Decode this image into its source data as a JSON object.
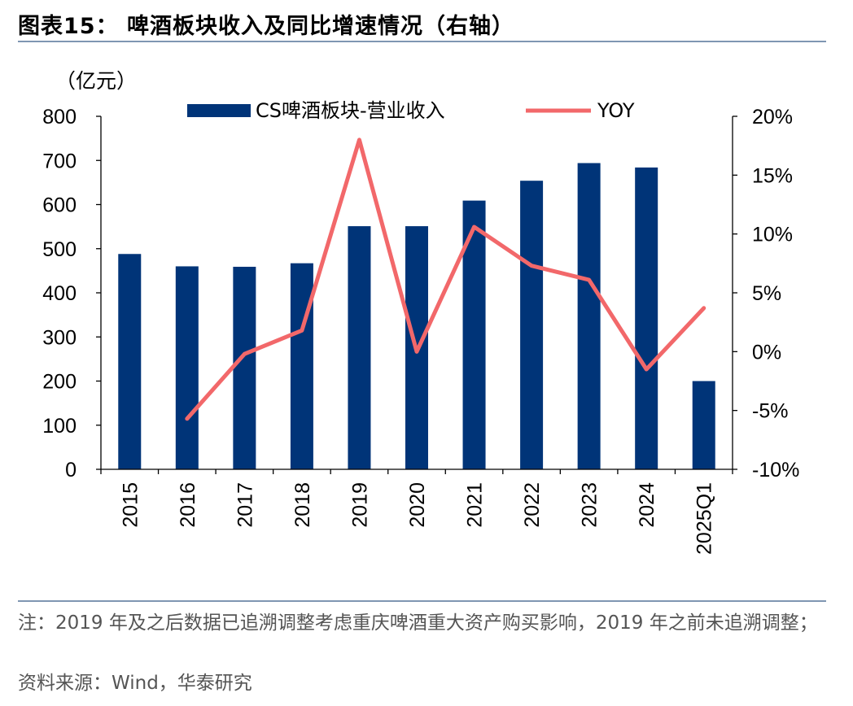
{
  "figure": {
    "title": "图表15：  啤酒板块收入及同比增速情况（右轴）",
    "note": "注：2019 年及之后数据已追溯调整考虑重庆啤酒重大资产购买影响，2019 年之前未追溯调整；",
    "source": "资料来源：Wind，华泰研究"
  },
  "chart_data": {
    "type": "bar",
    "categories": [
      "2015",
      "2016",
      "2017",
      "2018",
      "2019",
      "2020",
      "2021",
      "2022",
      "2023",
      "2024",
      "2025Q1"
    ],
    "y_unit": "（亿元）",
    "ylim": [
      0,
      800
    ],
    "y_ticks": [
      "0",
      "100",
      "200",
      "300",
      "400",
      "500",
      "600",
      "700",
      "800"
    ],
    "y2lim": [
      -10,
      20
    ],
    "y2_ticks": [
      "-10%",
      "-5%",
      "0%",
      "5%",
      "10%",
      "15%",
      "20%"
    ],
    "series": [
      {
        "name": "CS啤酒板块-营业收入",
        "type": "bar",
        "axis": "left",
        "color": "#003478",
        "values": [
          488,
          460,
          459,
          467,
          551,
          551,
          609,
          654,
          694,
          684,
          200
        ]
      },
      {
        "name": "YOY",
        "type": "line",
        "axis": "right",
        "color": "#f2686a",
        "values": [
          null,
          -5.7,
          -0.2,
          1.8,
          18.0,
          0.0,
          10.6,
          7.3,
          6.1,
          -1.5,
          3.7
        ]
      }
    ],
    "legend_position": "top",
    "grid": false
  }
}
